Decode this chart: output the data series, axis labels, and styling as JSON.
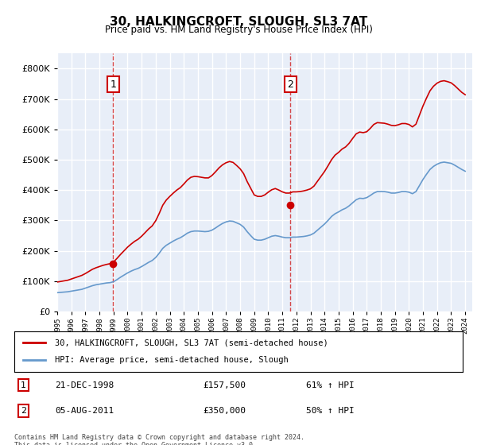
{
  "title": "30, HALKINGCROFT, SLOUGH, SL3 7AT",
  "subtitle": "Price paid vs. HM Land Registry's House Price Index (HPI)",
  "ylabel_ticks": [
    "£0",
    "£100K",
    "£200K",
    "£300K",
    "£400K",
    "£500K",
    "£600K",
    "£700K",
    "£800K"
  ],
  "ylim": [
    0,
    850000
  ],
  "xlim_start": 1995.0,
  "xlim_end": 2024.5,
  "bg_color": "#e8eef8",
  "plot_bg": "#e8eef8",
  "grid_color": "#ffffff",
  "red_line_color": "#cc0000",
  "blue_line_color": "#6699cc",
  "sale1_year": 1998.97,
  "sale1_price": 157500,
  "sale2_year": 2011.58,
  "sale2_price": 350000,
  "legend_label_red": "30, HALKINGCROFT, SLOUGH, SL3 7AT (semi-detached house)",
  "legend_label_blue": "HPI: Average price, semi-detached house, Slough",
  "annotation1_label": "1",
  "annotation1_date": "21-DEC-1998",
  "annotation1_price": "£157,500",
  "annotation1_hpi": "61% ↑ HPI",
  "annotation2_label": "2",
  "annotation2_date": "05-AUG-2011",
  "annotation2_price": "£350,000",
  "annotation2_hpi": "50% ↑ HPI",
  "footer": "Contains HM Land Registry data © Crown copyright and database right 2024.\nThis data is licensed under the Open Government Licence v3.0.",
  "hpi_data_x": [
    1995.0,
    1995.25,
    1995.5,
    1995.75,
    1996.0,
    1996.25,
    1996.5,
    1996.75,
    1997.0,
    1997.25,
    1997.5,
    1997.75,
    1998.0,
    1998.25,
    1998.5,
    1998.75,
    1999.0,
    1999.25,
    1999.5,
    1999.75,
    2000.0,
    2000.25,
    2000.5,
    2000.75,
    2001.0,
    2001.25,
    2001.5,
    2001.75,
    2002.0,
    2002.25,
    2002.5,
    2002.75,
    2003.0,
    2003.25,
    2003.5,
    2003.75,
    2004.0,
    2004.25,
    2004.5,
    2004.75,
    2005.0,
    2005.25,
    2005.5,
    2005.75,
    2006.0,
    2006.25,
    2006.5,
    2006.75,
    2007.0,
    2007.25,
    2007.5,
    2007.75,
    2008.0,
    2008.25,
    2008.5,
    2008.75,
    2009.0,
    2009.25,
    2009.5,
    2009.75,
    2010.0,
    2010.25,
    2010.5,
    2010.75,
    2011.0,
    2011.25,
    2011.5,
    2011.75,
    2012.0,
    2012.25,
    2012.5,
    2012.75,
    2013.0,
    2013.25,
    2013.5,
    2013.75,
    2014.0,
    2014.25,
    2014.5,
    2014.75,
    2015.0,
    2015.25,
    2015.5,
    2015.75,
    2016.0,
    2016.25,
    2016.5,
    2016.75,
    2017.0,
    2017.25,
    2017.5,
    2017.75,
    2018.0,
    2018.25,
    2018.5,
    2018.75,
    2019.0,
    2019.25,
    2019.5,
    2019.75,
    2020.0,
    2020.25,
    2020.5,
    2020.75,
    2021.0,
    2021.25,
    2021.5,
    2021.75,
    2022.0,
    2022.25,
    2022.5,
    2022.75,
    2023.0,
    2023.25,
    2023.5,
    2023.75,
    2024.0
  ],
  "hpi_data_y": [
    62000,
    63000,
    64000,
    65000,
    67000,
    69000,
    71000,
    73000,
    77000,
    81000,
    85000,
    88000,
    90000,
    92000,
    94000,
    95000,
    98000,
    105000,
    113000,
    120000,
    127000,
    133000,
    138000,
    142000,
    148000,
    155000,
    162000,
    168000,
    178000,
    192000,
    208000,
    218000,
    225000,
    232000,
    238000,
    243000,
    250000,
    258000,
    263000,
    265000,
    265000,
    264000,
    263000,
    264000,
    268000,
    275000,
    283000,
    290000,
    295000,
    298000,
    297000,
    292000,
    287000,
    278000,
    263000,
    250000,
    238000,
    235000,
    235000,
    238000,
    243000,
    248000,
    250000,
    248000,
    245000,
    243000,
    243000,
    245000,
    245000,
    246000,
    247000,
    249000,
    252000,
    258000,
    268000,
    278000,
    288000,
    300000,
    313000,
    322000,
    328000,
    335000,
    340000,
    348000,
    358000,
    368000,
    373000,
    372000,
    375000,
    382000,
    390000,
    395000,
    395000,
    395000,
    393000,
    390000,
    390000,
    392000,
    395000,
    395000,
    393000,
    388000,
    395000,
    415000,
    435000,
    452000,
    468000,
    478000,
    485000,
    490000,
    492000,
    490000,
    488000,
    482000,
    475000,
    468000,
    462000
  ],
  "red_data_x": [
    1995.0,
    1995.25,
    1995.5,
    1995.75,
    1996.0,
    1996.25,
    1996.5,
    1996.75,
    1997.0,
    1997.25,
    1997.5,
    1997.75,
    1998.0,
    1998.25,
    1998.5,
    1998.75,
    1999.0,
    1999.25,
    1999.5,
    1999.75,
    2000.0,
    2000.25,
    2000.5,
    2000.75,
    2001.0,
    2001.25,
    2001.5,
    2001.75,
    2002.0,
    2002.25,
    2002.5,
    2002.75,
    2003.0,
    2003.25,
    2003.5,
    2003.75,
    2004.0,
    2004.25,
    2004.5,
    2004.75,
    2005.0,
    2005.25,
    2005.5,
    2005.75,
    2006.0,
    2006.25,
    2006.5,
    2006.75,
    2007.0,
    2007.25,
    2007.5,
    2007.75,
    2008.0,
    2008.25,
    2008.5,
    2008.75,
    2009.0,
    2009.25,
    2009.5,
    2009.75,
    2010.0,
    2010.25,
    2010.5,
    2010.75,
    2011.0,
    2011.25,
    2011.5,
    2011.75,
    2012.0,
    2012.25,
    2012.5,
    2012.75,
    2013.0,
    2013.25,
    2013.5,
    2013.75,
    2014.0,
    2014.25,
    2014.5,
    2014.75,
    2015.0,
    2015.25,
    2015.5,
    2015.75,
    2016.0,
    2016.25,
    2016.5,
    2016.75,
    2017.0,
    2017.25,
    2017.5,
    2017.75,
    2018.0,
    2018.25,
    2018.5,
    2018.75,
    2019.0,
    2019.25,
    2019.5,
    2019.75,
    2020.0,
    2020.25,
    2020.5,
    2020.75,
    2021.0,
    2021.25,
    2021.5,
    2021.75,
    2022.0,
    2022.25,
    2022.5,
    2022.75,
    2023.0,
    2023.25,
    2023.5,
    2023.75,
    2024.0
  ],
  "red_data_y": [
    97000,
    99000,
    101000,
    103000,
    107000,
    111000,
    115000,
    119000,
    125000,
    132000,
    139000,
    144000,
    148000,
    152000,
    155000,
    157500,
    163000,
    175000,
    188000,
    200000,
    212000,
    222000,
    231000,
    238000,
    248000,
    260000,
    272000,
    282000,
    299000,
    323000,
    350000,
    367000,
    379000,
    390000,
    400000,
    408000,
    420000,
    433000,
    442000,
    445000,
    444000,
    442000,
    440000,
    440000,
    448000,
    460000,
    473000,
    483000,
    490000,
    494000,
    491000,
    481000,
    470000,
    454000,
    428000,
    406000,
    384000,
    379000,
    379000,
    384000,
    393000,
    401000,
    405000,
    400000,
    394000,
    390000,
    390000,
    394000,
    394000,
    395000,
    397000,
    400000,
    404000,
    413000,
    429000,
    445000,
    461000,
    480000,
    500000,
    515000,
    524000,
    535000,
    542000,
    554000,
    570000,
    585000,
    591000,
    589000,
    592000,
    603000,
    616000,
    622000,
    621000,
    620000,
    617000,
    613000,
    612000,
    615000,
    619000,
    619000,
    616000,
    608000,
    617000,
    647000,
    677000,
    703000,
    727000,
    742000,
    752000,
    758000,
    760000,
    757000,
    753000,
    744000,
    733000,
    722000,
    714000
  ]
}
